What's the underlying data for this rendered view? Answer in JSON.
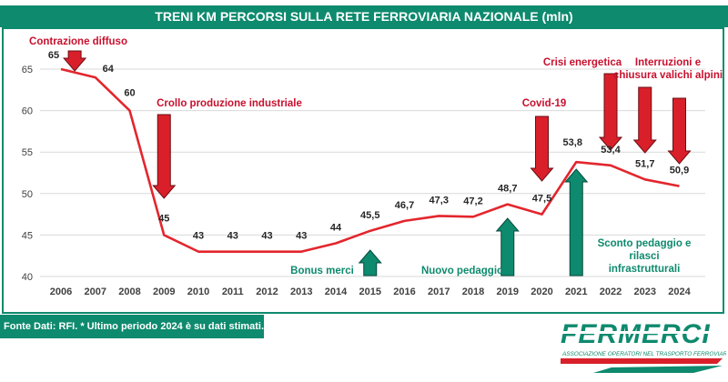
{
  "title": "TRENI KM PERCORSI SULLA RETE FERROVIARIA NAZIONALE (mln)",
  "footer_note": "Fonte Dati: RFI. * Ultimo periodo 2024 è su dati stimati.",
  "logo": {
    "name": "FERMERCI",
    "tagline": "ASSOCIAZIONE OPERATORI NEL TRASPORTO FERROVIARIO MERCI"
  },
  "colors": {
    "green": "#0e8a6e",
    "red": "#d9202a",
    "line": "#e3262d",
    "label_red": "#c8102e",
    "label_green": "#0e8a6e"
  },
  "chart_data": {
    "type": "line",
    "title": "TRENI KM PERCORSI SULLA RETE FERROVIARIA NAZIONALE (mln)",
    "xlabel": "",
    "ylabel": "",
    "ylim": [
      40,
      67
    ],
    "yticks": [
      40,
      45,
      50,
      55,
      60,
      65
    ],
    "grid": true,
    "x": [
      "2006",
      "2007",
      "2008",
      "2009",
      "2010",
      "2011",
      "2012",
      "2013",
      "2014",
      "2015",
      "2016",
      "2017",
      "2018",
      "2019",
      "2020",
      "2021",
      "2022",
      "2023",
      "2024"
    ],
    "series": [
      {
        "values": [
          65,
          64,
          60,
          45,
          43,
          43,
          43,
          43,
          44,
          45.5,
          46.7,
          47.3,
          47.2,
          48.7,
          47.5,
          53.8,
          53.4,
          51.7,
          50.9
        ],
        "labels": [
          "65",
          "64",
          "60",
          "45",
          "43",
          "43",
          "43",
          "43",
          "44",
          "45,5",
          "46,7",
          "47,3",
          "47,2",
          "48,7",
          "47,5",
          "53,8",
          "53,4",
          "51,7",
          "50,9"
        ]
      }
    ],
    "annotations": {
      "red": [
        {
          "text": [
            "Contrazione diffuso"
          ],
          "year": "2006",
          "arrow_year": "2006.4"
        },
        {
          "text": [
            "Crollo produzione industriale"
          ],
          "year": "2009",
          "arrow_year": "2009"
        },
        {
          "text": [
            "Covid-19"
          ],
          "year": "2020",
          "arrow_year": "2020"
        },
        {
          "text": [
            "Crisi energetica"
          ],
          "year": "2022",
          "arrow_year": "2022"
        },
        {
          "text": [
            "Interruzioni e",
            "chiusura  valichi alpini"
          ],
          "year": "2023",
          "arrow_year": "2023"
        }
      ],
      "red_arrows_years": [
        "2006.4",
        "2009",
        "2020",
        "2022",
        "2023",
        "2024"
      ],
      "green": [
        {
          "text": [
            "Bonus merci"
          ],
          "year": "2015"
        },
        {
          "text": [
            "Nuovo pedaggio"
          ],
          "year": "2019"
        },
        {
          "text": [
            "Sconto pedaggio e",
            "rilasci",
            "infrastrutturali"
          ],
          "year": "2022"
        }
      ],
      "green_arrows_years": [
        "2015",
        "2019",
        "2021"
      ]
    }
  }
}
